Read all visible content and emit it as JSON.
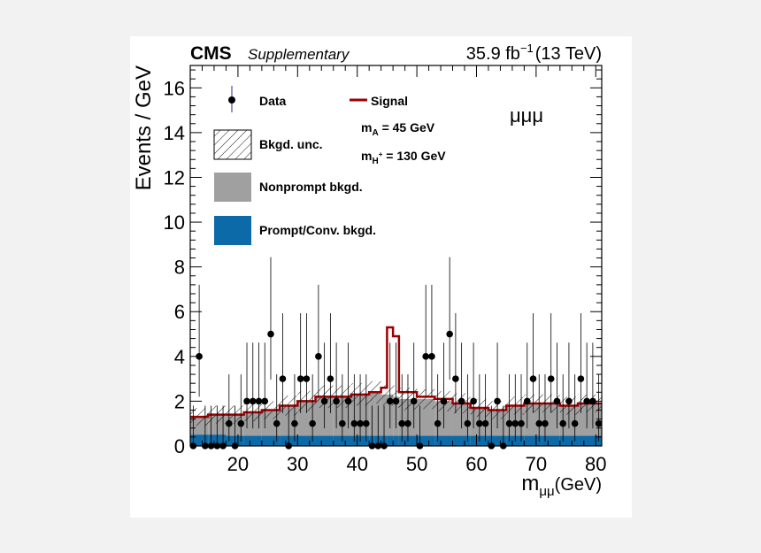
{
  "header": {
    "experiment": "CMS",
    "tag": "Supplementary",
    "lumi": "35.9 fb",
    "lumi_exp": "−1",
    "energy": "(13 TeV)"
  },
  "channel_label": "μμμ",
  "legend": {
    "data": "Data",
    "bkgd_unc": "Bkgd. unc.",
    "nonprompt": "Nonprompt bkgd.",
    "prompt": "Prompt/Conv. bkgd.",
    "signal": "Signal",
    "mA_main": "m",
    "mA_sub": "A",
    "mA_value": " = 45 GeV",
    "mH_main": "m",
    "mH_sub": "H",
    "mH_sup": "+",
    "mH_value": " = 130 GeV"
  },
  "axes": {
    "xlabel_main": "m",
    "xlabel_sub": "μμ",
    "xlabel_unit": "(GeV)",
    "ylabel": "Events / GeV"
  },
  "colors": {
    "prompt": "#0d6aa8",
    "nonprompt": "#a0a0a0",
    "signal": "#9b0000",
    "data": "#000000",
    "frame": "#000000",
    "data_tick": "#2a2aa0"
  },
  "chart_data": {
    "type": "histogram",
    "xlim": [
      12,
      81
    ],
    "ylim": [
      0,
      17
    ],
    "x_ticks": [
      20,
      30,
      40,
      50,
      60,
      70,
      80
    ],
    "y_ticks": [
      0,
      2,
      4,
      6,
      8,
      10,
      12,
      14,
      16
    ],
    "bin_edges": [
      12,
      15,
      18,
      21,
      24,
      27,
      30,
      33,
      36,
      39,
      42,
      43,
      44,
      45,
      46,
      47,
      50,
      53,
      56,
      59,
      62,
      65,
      68,
      71,
      74,
      77,
      81
    ],
    "series": [
      {
        "name": "Prompt/Conv. bkgd.",
        "values": [
          0.5,
          0.5,
          0.45,
          0.45,
          0.45,
          0.45,
          0.45,
          0.45,
          0.45,
          0.45,
          0.45,
          0.45,
          0.45,
          0.45,
          0.45,
          0.45,
          0.45,
          0.45,
          0.45,
          0.45,
          0.45,
          0.45,
          0.45,
          0.45,
          0.45,
          0.45
        ]
      },
      {
        "name": "Nonprompt bkgd.",
        "values": [
          1.3,
          1.4,
          1.4,
          1.5,
          1.6,
          1.8,
          2.0,
          2.2,
          2.2,
          2.3,
          2.4,
          2.4,
          2.3,
          2.3,
          2.2,
          2.1,
          2.1,
          2.0,
          1.9,
          1.7,
          1.6,
          1.8,
          1.9,
          1.9,
          1.8,
          1.9
        ]
      },
      {
        "name": "Signal",
        "values": [
          1.3,
          1.4,
          1.4,
          1.5,
          1.6,
          1.8,
          2.0,
          2.2,
          2.2,
          2.3,
          2.4,
          2.4,
          2.6,
          5.3,
          4.9,
          2.4,
          2.2,
          2.1,
          1.9,
          1.7,
          1.6,
          1.8,
          1.9,
          1.9,
          1.8,
          1.9
        ]
      }
    ],
    "bkgd_unc": [
      0.4,
      0.4,
      0.4,
      0.4,
      0.4,
      0.45,
      0.45,
      0.5,
      0.5,
      0.5,
      0.5,
      0.5,
      0.5,
      0.5,
      0.5,
      0.5,
      0.45,
      0.45,
      0.45,
      0.4,
      0.4,
      0.4,
      0.4,
      0.4,
      0.4,
      0.4
    ],
    "data": {
      "name": "Data",
      "x": [
        12.5,
        13.5,
        14.5,
        15.5,
        16.5,
        17.5,
        18.5,
        19.5,
        20.5,
        21.5,
        22.5,
        23.5,
        24.5,
        25.5,
        26.5,
        27.5,
        28.5,
        29.5,
        30.5,
        31.5,
        32.5,
        33.5,
        34.5,
        35.5,
        36.5,
        37.5,
        38.5,
        39.5,
        40.5,
        41.5,
        42.5,
        43.5,
        44.5,
        45.5,
        46.5,
        47.5,
        48.5,
        49.5,
        50.5,
        51.5,
        52.5,
        53.5,
        54.5,
        55.5,
        56.5,
        57.5,
        58.5,
        59.5,
        60.5,
        61.5,
        62.5,
        63.5,
        64.5,
        65.5,
        66.5,
        67.5,
        68.5,
        69.5,
        70.5,
        71.5,
        72.5,
        73.5,
        74.5,
        75.5,
        76.5,
        77.5,
        78.5,
        79.5,
        80.5
      ],
      "y": [
        0,
        4,
        0,
        0,
        0,
        0,
        1,
        0,
        1,
        2,
        2,
        2,
        2,
        5,
        1,
        3,
        0,
        1,
        3,
        3,
        1,
        4,
        2,
        3,
        2,
        1,
        2,
        1,
        1,
        1,
        0,
        0,
        0,
        2,
        2,
        1,
        1,
        2,
        0,
        4,
        4,
        1,
        2,
        5,
        3,
        2,
        1,
        2,
        1,
        1,
        0,
        2,
        0,
        1,
        1,
        1,
        2,
        3,
        1,
        1,
        3,
        2,
        1,
        2,
        1,
        3,
        2,
        2,
        1
      ]
    }
  }
}
